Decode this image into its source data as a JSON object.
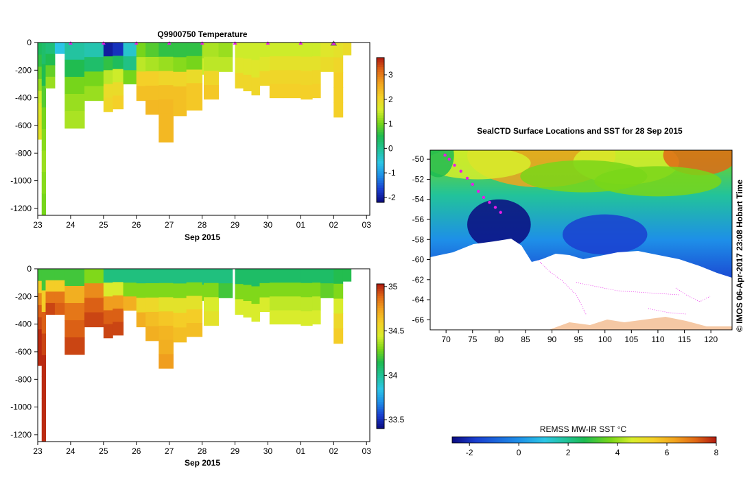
{
  "colors": {
    "ramp": [
      "#0b0b80",
      "#1a3fd0",
      "#1e8fe8",
      "#2cc6e6",
      "#22c39a",
      "#1dbb52",
      "#79d619",
      "#d7ee2c",
      "#f4d128",
      "#f2a51f",
      "#e16a16",
      "#b01a10"
    ]
  },
  "chart_data": [
    {
      "type": "heatmap",
      "title": "Q9900750  Temperature",
      "xlabel": "Sep 2015",
      "x_ticks": [
        "23",
        "24",
        "25",
        "26",
        "27",
        "28",
        "29",
        "30",
        "01",
        "02",
        "03"
      ],
      "y_ticks": [
        "0",
        "-200",
        "-400",
        "-600",
        "-800",
        "-1000",
        "-1200"
      ],
      "ylim": [
        -1250,
        0
      ],
      "xlim": [
        23,
        33.1
      ],
      "colorbar": {
        "ticks": [
          "3",
          "2",
          "1",
          "0",
          "-1",
          "-2"
        ],
        "range": [
          -2.2,
          3.7
        ]
      },
      "profile_markers_day": [
        24,
        25,
        26,
        27,
        28,
        29,
        30,
        31,
        32
      ],
      "highlight_marker_day": 32,
      "profiles": [
        {
          "x": 23.0,
          "w": 0.12,
          "depth": 700,
          "t": [
            0.4,
            0.6,
            0.9,
            1.2,
            1.5,
            1.7,
            1.8,
            1.8
          ]
        },
        {
          "x": 23.12,
          "w": 0.12,
          "depth": 1250,
          "t": [
            0.3,
            0.5,
            0.8,
            1.0,
            1.1,
            1.2,
            1.1,
            1.0
          ]
        },
        {
          "x": 23.24,
          "w": 0.28,
          "depth": 330,
          "t": [
            0.2,
            0.5,
            0.9,
            1.2
          ]
        },
        {
          "x": 23.52,
          "w": 0.3,
          "depth": 80,
          "t": [
            -0.6
          ]
        },
        {
          "x": 23.82,
          "w": 0.6,
          "depth": 620,
          "t": [
            -0.1,
            0.5,
            1.0,
            1.2,
            1.3
          ]
        },
        {
          "x": 24.42,
          "w": 0.58,
          "depth": 420,
          "t": [
            -0.2,
            0.3,
            1.0,
            1.2
          ]
        },
        {
          "x": 25.0,
          "w": 0.28,
          "depth": 500,
          "t": [
            -2.0,
            0.6,
            1.4,
            1.9,
            2.0
          ]
        },
        {
          "x": 25.28,
          "w": 0.32,
          "depth": 480,
          "t": [
            -1.8,
            0.4,
            1.5,
            1.9,
            2.1
          ]
        },
        {
          "x": 25.6,
          "w": 0.4,
          "depth": 300,
          "t": [
            -0.4,
            0.1,
            1.0
          ]
        },
        {
          "x": 26.0,
          "w": 0.28,
          "depth": 420,
          "t": [
            1.0,
            1.4,
            2.1,
            2.3
          ]
        },
        {
          "x": 26.28,
          "w": 0.4,
          "depth": 520,
          "t": [
            0.8,
            1.3,
            2.1,
            2.3,
            2.4
          ]
        },
        {
          "x": 26.68,
          "w": 0.44,
          "depth": 720,
          "t": [
            0.6,
            1.2,
            2.0,
            2.3,
            2.4,
            2.4,
            2.4
          ]
        },
        {
          "x": 27.12,
          "w": 0.4,
          "depth": 530,
          "t": [
            0.6,
            1.1,
            2.0,
            2.3,
            2.3
          ]
        },
        {
          "x": 27.52,
          "w": 0.48,
          "depth": 490,
          "t": [
            0.6,
            1.0,
            1.9,
            2.2,
            2.2
          ]
        },
        {
          "x": 28.0,
          "w": 0.05,
          "depth": 230,
          "t": [
            1.3,
            1.5
          ]
        },
        {
          "x": 28.05,
          "w": 0.45,
          "depth": 410,
          "t": [
            1.3,
            1.4,
            2.0,
            2.2
          ]
        },
        {
          "x": 28.5,
          "w": 0.42,
          "depth": 210,
          "t": [
            1.2,
            1.4
          ]
        },
        {
          "x": 29.0,
          "w": 0.25,
          "depth": 330,
          "t": [
            1.5,
            1.7,
            2.0
          ]
        },
        {
          "x": 29.25,
          "w": 0.25,
          "depth": 350,
          "t": [
            1.5,
            1.7,
            2.0
          ]
        },
        {
          "x": 29.5,
          "w": 0.25,
          "depth": 380,
          "t": [
            1.5,
            1.7,
            2.0
          ]
        },
        {
          "x": 29.75,
          "w": 0.3,
          "depth": 310,
          "t": [
            1.5,
            1.7,
            2.0
          ]
        },
        {
          "x": 30.05,
          "w": 0.4,
          "depth": 400,
          "t": [
            1.5,
            1.8,
            2.0,
            2.1
          ]
        },
        {
          "x": 30.45,
          "w": 0.55,
          "depth": 400,
          "t": [
            1.5,
            1.8,
            2.0,
            2.1
          ]
        },
        {
          "x": 31.0,
          "w": 0.35,
          "depth": 410,
          "t": [
            1.5,
            1.8,
            2.0,
            2.1
          ]
        },
        {
          "x": 31.35,
          "w": 0.25,
          "depth": 400,
          "t": [
            1.5,
            1.8,
            2.0,
            2.1
          ]
        },
        {
          "x": 31.6,
          "w": 0.4,
          "depth": 210,
          "t": [
            1.7,
            1.9
          ]
        },
        {
          "x": 32.0,
          "w": 0.28,
          "depth": 540,
          "t": [
            1.8,
            2.0,
            2.1,
            2.1,
            2.1
          ]
        },
        {
          "x": 32.28,
          "w": 0.25,
          "depth": 90,
          "t": [
            1.9
          ]
        }
      ]
    },
    {
      "type": "heatmap",
      "title": "",
      "xlabel": "Sep 2015",
      "x_ticks": [
        "23",
        "24",
        "25",
        "26",
        "27",
        "28",
        "29",
        "30",
        "01",
        "02",
        "03"
      ],
      "y_ticks": [
        "0",
        "-200",
        "-400",
        "-600",
        "-800",
        "-1000",
        "-1200"
      ],
      "ylim": [
        -1250,
        0
      ],
      "xlim": [
        23,
        33.1
      ],
      "colorbar": {
        "ticks": [
          "35",
          "34.5",
          "34",
          "33.5"
        ],
        "range": [
          33.4,
          35.03
        ]
      },
      "profiles": [
        {
          "x": 23.0,
          "w": 0.12,
          "depth": 700,
          "t": [
            34.2,
            34.6,
            34.8,
            34.9,
            34.95,
            35.0,
            35.0,
            35.0
          ]
        },
        {
          "x": 23.12,
          "w": 0.12,
          "depth": 1250,
          "t": [
            34.2,
            34.6,
            34.9,
            34.95,
            35.0,
            35.0,
            35.0,
            35.0
          ]
        },
        {
          "x": 23.24,
          "w": 0.28,
          "depth": 330,
          "t": [
            34.2,
            34.6,
            34.85,
            34.95
          ]
        },
        {
          "x": 23.52,
          "w": 0.3,
          "depth": 330,
          "t": [
            34.2,
            34.6,
            34.85,
            34.9
          ]
        },
        {
          "x": 23.82,
          "w": 0.6,
          "depth": 620,
          "t": [
            34.2,
            34.7,
            34.85,
            34.9,
            34.95
          ]
        },
        {
          "x": 24.42,
          "w": 0.58,
          "depth": 420,
          "t": [
            34.3,
            34.8,
            34.9,
            34.95
          ]
        },
        {
          "x": 25.0,
          "w": 0.28,
          "depth": 500,
          "t": [
            34.05,
            34.45,
            34.75,
            34.9,
            34.95
          ]
        },
        {
          "x": 25.28,
          "w": 0.32,
          "depth": 480,
          "t": [
            34.05,
            34.45,
            34.75,
            34.9,
            34.95
          ]
        },
        {
          "x": 25.6,
          "w": 0.4,
          "depth": 300,
          "t": [
            34.05,
            34.3,
            34.7
          ]
        },
        {
          "x": 26.0,
          "w": 0.28,
          "depth": 420,
          "t": [
            34.05,
            34.3,
            34.55,
            34.7
          ]
        },
        {
          "x": 26.28,
          "w": 0.4,
          "depth": 520,
          "t": [
            34.05,
            34.3,
            34.55,
            34.65,
            34.7
          ]
        },
        {
          "x": 26.68,
          "w": 0.44,
          "depth": 720,
          "t": [
            34.05,
            34.3,
            34.5,
            34.62,
            34.68,
            34.7,
            34.75
          ]
        },
        {
          "x": 27.12,
          "w": 0.4,
          "depth": 530,
          "t": [
            34.05,
            34.3,
            34.5,
            34.6,
            34.65
          ]
        },
        {
          "x": 27.52,
          "w": 0.48,
          "depth": 490,
          "t": [
            34.05,
            34.3,
            34.5,
            34.6,
            34.65
          ]
        },
        {
          "x": 28.0,
          "w": 0.05,
          "depth": 230,
          "t": [
            34.05,
            34.3
          ]
        },
        {
          "x": 28.05,
          "w": 0.45,
          "depth": 410,
          "t": [
            34.05,
            34.3,
            34.45,
            34.5
          ]
        },
        {
          "x": 28.5,
          "w": 0.42,
          "depth": 210,
          "t": [
            34.05,
            34.2
          ]
        },
        {
          "x": 29.0,
          "w": 0.25,
          "depth": 330,
          "t": [
            34.1,
            34.3,
            34.45
          ]
        },
        {
          "x": 29.25,
          "w": 0.25,
          "depth": 350,
          "t": [
            34.1,
            34.3,
            34.45
          ]
        },
        {
          "x": 29.5,
          "w": 0.25,
          "depth": 380,
          "t": [
            34.1,
            34.3,
            34.45
          ]
        },
        {
          "x": 29.75,
          "w": 0.3,
          "depth": 310,
          "t": [
            34.1,
            34.3,
            34.45
          ]
        },
        {
          "x": 30.05,
          "w": 0.4,
          "depth": 400,
          "t": [
            34.1,
            34.3,
            34.4,
            34.45
          ]
        },
        {
          "x": 30.45,
          "w": 0.55,
          "depth": 400,
          "t": [
            34.1,
            34.3,
            34.4,
            34.45
          ]
        },
        {
          "x": 31.0,
          "w": 0.35,
          "depth": 410,
          "t": [
            34.1,
            34.3,
            34.4,
            34.45
          ]
        },
        {
          "x": 31.35,
          "w": 0.25,
          "depth": 400,
          "t": [
            34.1,
            34.3,
            34.4,
            34.45
          ]
        },
        {
          "x": 31.6,
          "w": 0.4,
          "depth": 210,
          "t": [
            34.1,
            34.25
          ]
        },
        {
          "x": 32.0,
          "w": 0.28,
          "depth": 540,
          "t": [
            34.15,
            34.3,
            34.45,
            34.55,
            34.6
          ]
        },
        {
          "x": 32.28,
          "w": 0.25,
          "depth": 90,
          "t": [
            34.15
          ]
        }
      ]
    },
    {
      "type": "heatmap",
      "title": "SealCTD Surface Locations and SST for 28 Sep 2015",
      "x_ticks": [
        "70",
        "75",
        "80",
        "85",
        "90",
        "95",
        "100",
        "105",
        "110",
        "115",
        "120"
      ],
      "x_values": [
        70,
        75,
        80,
        85,
        90,
        95,
        100,
        105,
        110,
        115,
        120
      ],
      "y_ticks": [
        "-50",
        "-52",
        "-54",
        "-56",
        "-58",
        "-60",
        "-62",
        "-64",
        "-66"
      ],
      "y_values": [
        -50,
        -52,
        -54,
        -56,
        -58,
        -60,
        -62,
        -64,
        -66
      ],
      "xlim": [
        67,
        124
      ],
      "ylim": [
        -67,
        -49.1
      ],
      "colorbar": {
        "label": "REMSS MW-IR SST °C",
        "ticks": [
          "-2",
          "0",
          "2",
          "4",
          "6",
          "8"
        ],
        "tick_values": [
          -2,
          0,
          2,
          4,
          6,
          8
        ],
        "range": [
          -2.7,
          8
        ]
      },
      "copyright": "© IMOS 06-Apr-2017 23:08 Hobart Time",
      "seal_track": [
        {
          "lon": 69.8,
          "lat": -49.6
        },
        {
          "lon": 70.6,
          "lat": -50.0
        },
        {
          "lon": 71.6,
          "lat": -50.6
        },
        {
          "lon": 72.8,
          "lat": -51.2
        },
        {
          "lon": 74.0,
          "lat": -51.9
        },
        {
          "lon": 75.0,
          "lat": -52.5
        },
        {
          "lon": 76.1,
          "lat": -53.2
        },
        {
          "lon": 77.1,
          "lat": -53.8
        },
        {
          "lon": 78.2,
          "lat": -54.3
        },
        {
          "lon": 79.3,
          "lat": -54.8
        },
        {
          "lon": 80.3,
          "lat": -55.3
        }
      ]
    }
  ]
}
